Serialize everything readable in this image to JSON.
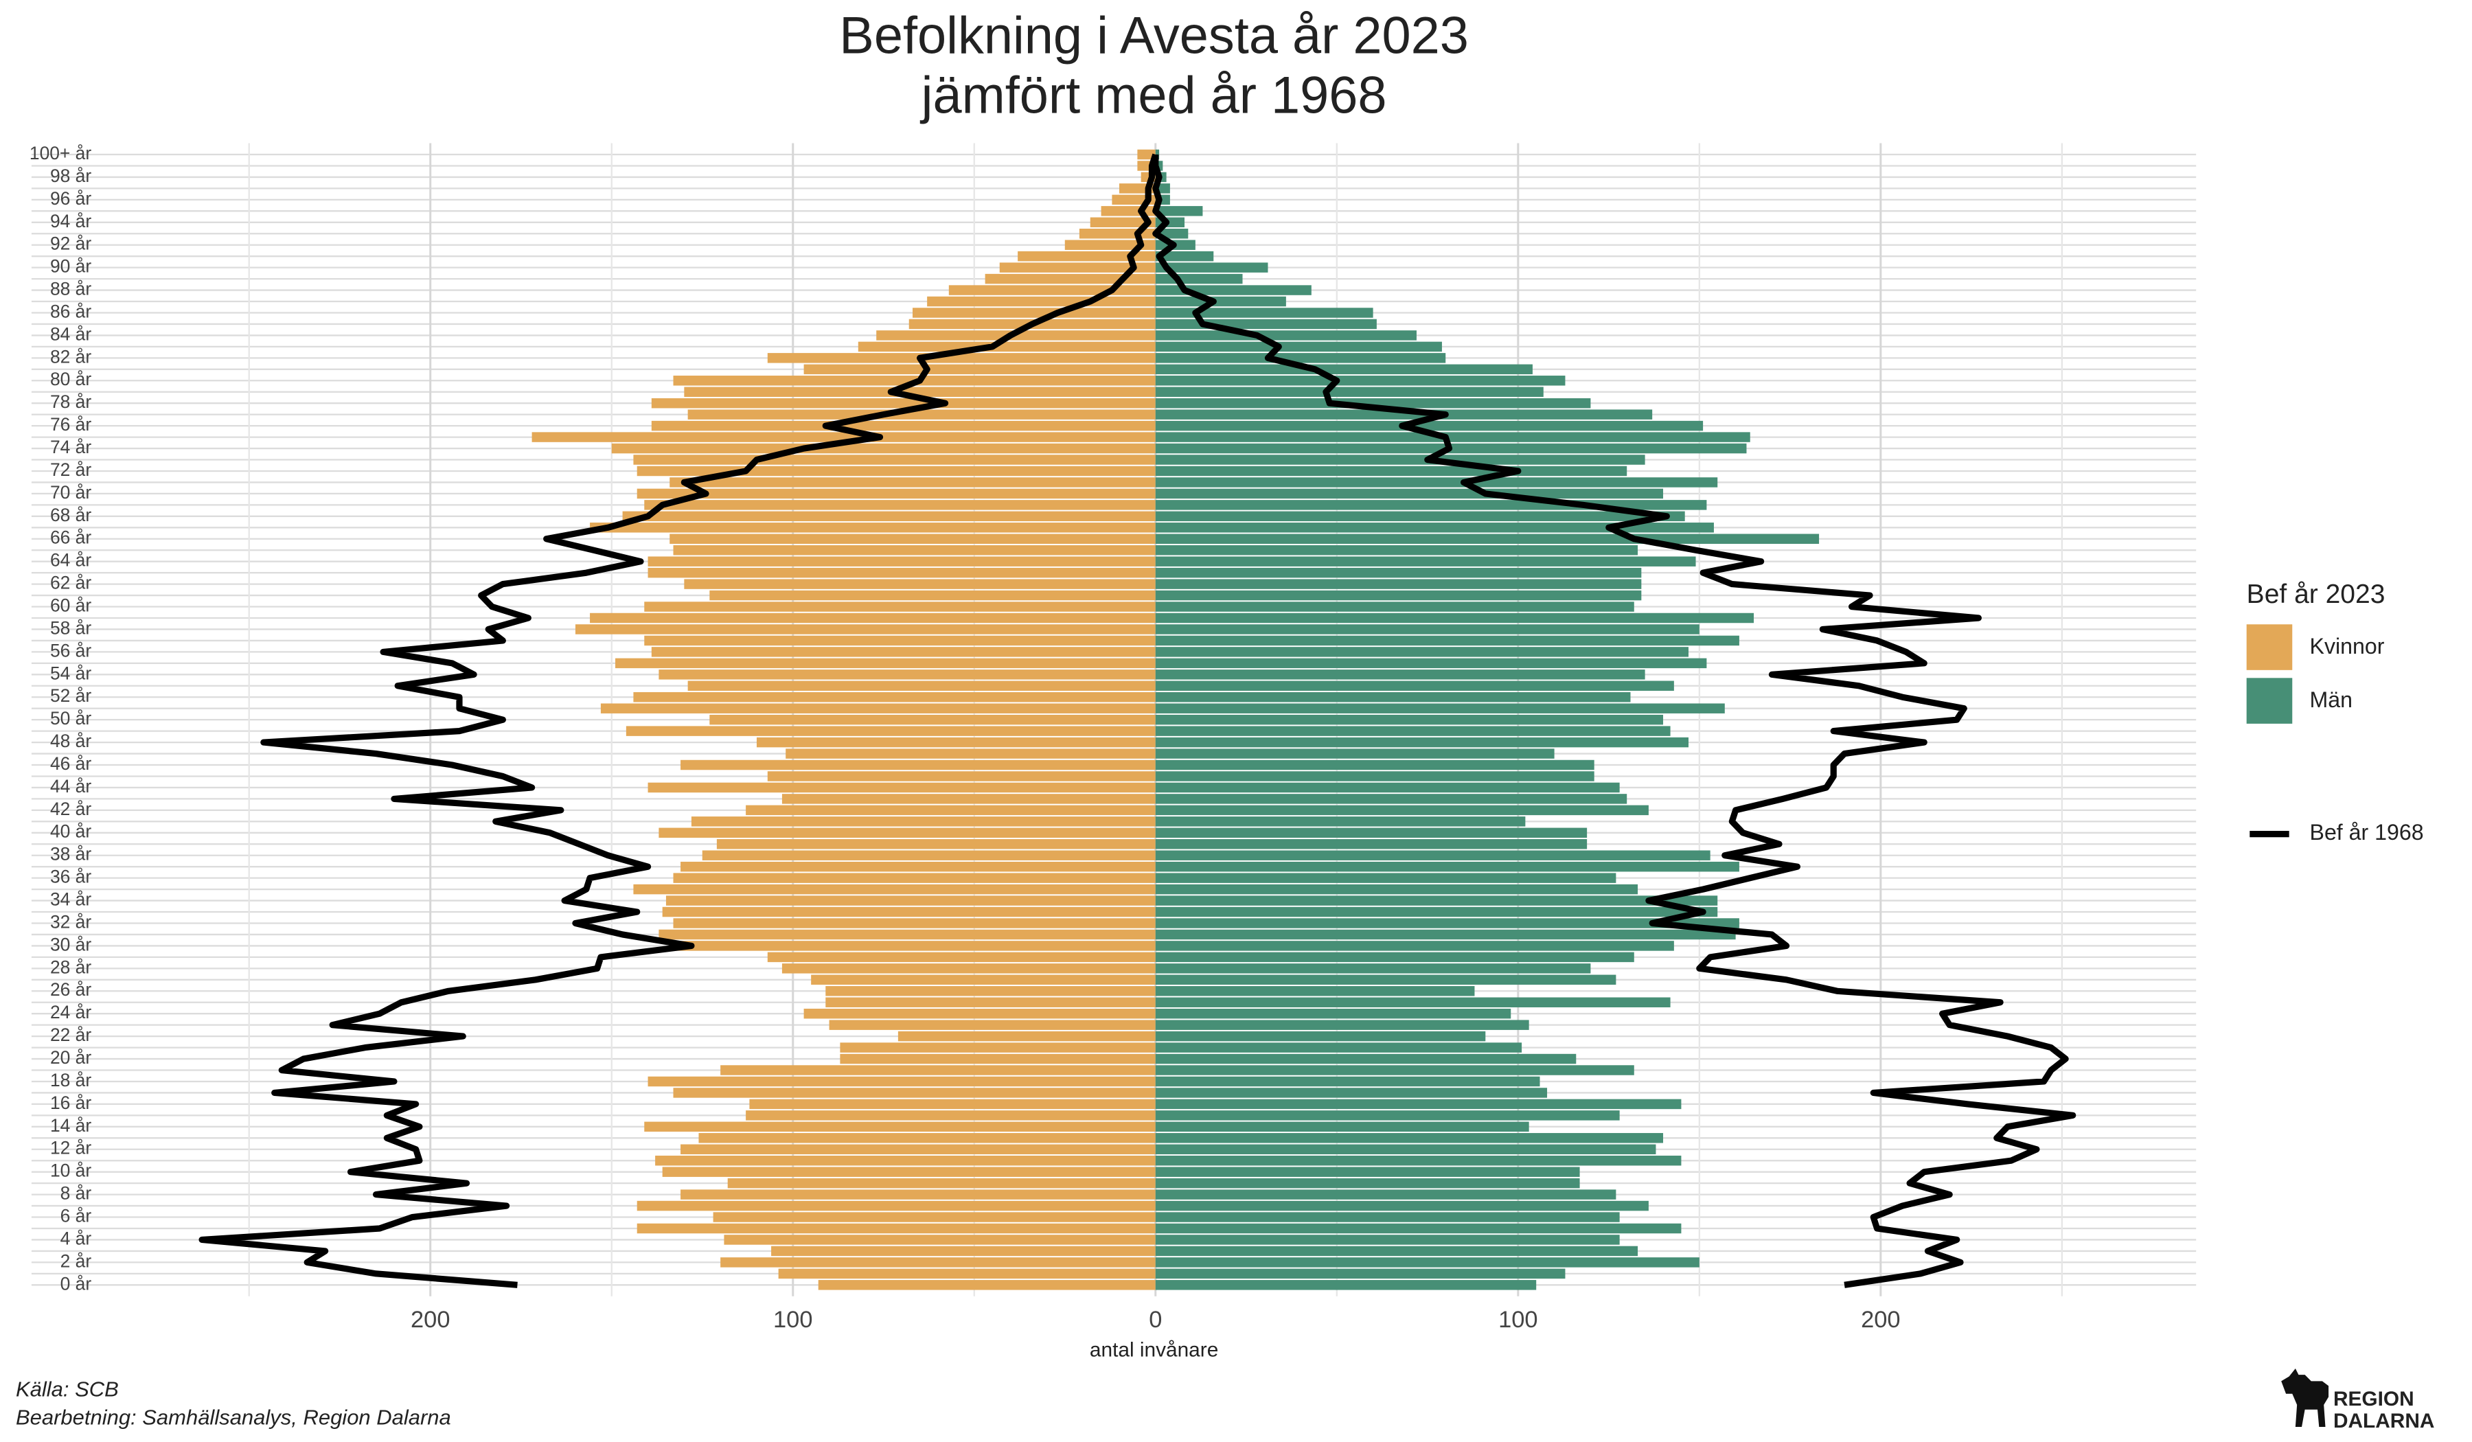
{
  "chart_data": {
    "type": "bar",
    "title": [
      "Befolkning i Avesta år 2023",
      "jämfört med år 1968"
    ],
    "x_label": "antal invånare",
    "legend_title": "Bef år 2023",
    "caption": [
      "Källa: SCB",
      "Bearbetning: Samhällsanalys, Region Dalarna"
    ],
    "logo": [
      "REGION",
      "DALARNA"
    ],
    "grid": true,
    "xlim": [
      -310,
      287
    ],
    "xticks": [
      {
        "value": -200,
        "label": "200"
      },
      {
        "value": -100,
        "label": "100"
      },
      0,
      100,
      200
    ],
    "minor_xticks": [
      -250,
      -150,
      -50,
      50,
      150,
      250
    ],
    "categories": [
      "0 år",
      null,
      "2 år",
      null,
      "4 år",
      null,
      "6 år",
      null,
      "8 år",
      null,
      "10 år",
      null,
      "12 år",
      null,
      "14 år",
      null,
      "16 år",
      null,
      "18 år",
      null,
      "20 år",
      null,
      "22 år",
      null,
      "24 år",
      null,
      "26 år",
      null,
      "28 år",
      null,
      "30 år",
      null,
      "32 år",
      null,
      "34 år",
      null,
      "36 år",
      null,
      "38 år",
      null,
      "40 år",
      null,
      "42 år",
      null,
      "44 år",
      null,
      "46 år",
      null,
      "48 år",
      null,
      "50 år",
      null,
      "52 år",
      null,
      "54 år",
      null,
      "56 år",
      null,
      "58 år",
      null,
      "60 år",
      null,
      "62 år",
      null,
      "64 år",
      null,
      "66 år",
      null,
      "68 år",
      null,
      "70 år",
      null,
      "72 år",
      null,
      "74 år",
      null,
      "76 år",
      null,
      "78 år",
      null,
      "80 år",
      null,
      "82 år",
      null,
      "84 år",
      null,
      "86 år",
      null,
      "88 år",
      null,
      "90 år",
      null,
      "92 år",
      null,
      "94 år",
      null,
      "96 år",
      null,
      "98 år",
      null,
      "100+ år"
    ],
    "series": [
      {
        "name": "Kvinnor",
        "type": "bar",
        "color": "#e3a857",
        "values": [
          -93,
          -104,
          -120,
          -106,
          -119,
          -143,
          -122,
          -143,
          -131,
          -118,
          -136,
          -138,
          -131,
          -126,
          -141,
          -113,
          -112,
          -133,
          -140,
          -120,
          -87,
          -87,
          -71,
          -90,
          -97,
          -91,
          -91,
          -95,
          -103,
          -107,
          -134,
          -137,
          -133,
          -136,
          -135,
          -144,
          -133,
          -131,
          -125,
          -121,
          -137,
          -128,
          -113,
          -103,
          -140,
          -107,
          -131,
          -102,
          -110,
          -146,
          -123,
          -153,
          -144,
          -129,
          -137,
          -149,
          -139,
          -141,
          -160,
          -156,
          -141,
          -123,
          -130,
          -140,
          -140,
          -133,
          -134,
          -156,
          -147,
          -141,
          -143,
          -134,
          -143,
          -144,
          -150,
          -172,
          -139,
          -129,
          -139,
          -130,
          -133,
          -97,
          -107,
          -82,
          -77,
          -68,
          -67,
          -63,
          -57,
          -47,
          -43,
          -38,
          -25,
          -21,
          -18,
          -15,
          -12,
          -10,
          -4,
          -5,
          -5
        ]
      },
      {
        "name": "Män",
        "type": "bar",
        "color": "#478f76",
        "values": [
          105,
          113,
          150,
          133,
          128,
          145,
          128,
          136,
          127,
          117,
          117,
          145,
          138,
          140,
          103,
          128,
          145,
          108,
          106,
          132,
          116,
          101,
          91,
          103,
          98,
          142,
          88,
          127,
          120,
          132,
          143,
          160,
          161,
          155,
          155,
          133,
          127,
          161,
          153,
          119,
          119,
          102,
          136,
          130,
          128,
          121,
          121,
          110,
          147,
          142,
          140,
          157,
          131,
          143,
          135,
          152,
          147,
          161,
          150,
          165,
          132,
          134,
          134,
          134,
          149,
          133,
          183,
          154,
          146,
          152,
          140,
          155,
          130,
          135,
          163,
          164,
          151,
          137,
          120,
          107,
          113,
          104,
          80,
          79,
          72,
          61,
          60,
          36,
          43,
          24,
          31,
          16,
          11,
          9,
          8,
          13,
          4,
          4,
          3,
          2,
          1
        ]
      },
      {
        "name": "Bef år 1968",
        "type": "line",
        "color": "#000000",
        "values": [
          -176,
          -215,
          -234,
          -229,
          -263,
          -214,
          -205,
          -179,
          -215,
          -190,
          -222,
          -203,
          -204,
          -212,
          -203,
          -212,
          -204,
          -243,
          -210,
          -241,
          -235,
          -218,
          -191,
          -227,
          -214,
          -208,
          -195,
          -171,
          -154,
          -153,
          -128,
          -147,
          -160,
          -143,
          -163,
          -157,
          -156,
          -140,
          -151,
          -159,
          -167,
          -182,
          -164,
          -210,
          -172,
          -180,
          -194,
          -215,
          -246,
          -192,
          -180,
          -192,
          -192,
          -209,
          -188,
          -194,
          -213,
          -180,
          -184,
          -173,
          -183,
          -186,
          -180,
          -157,
          -142,
          -155,
          -168,
          -151,
          -140,
          -136,
          -124,
          -130,
          -113,
          -110,
          -97,
          -76,
          -91,
          -75,
          -58,
          -73,
          -65,
          -63,
          -65,
          -45,
          -40,
          -34,
          -27,
          -18,
          -12,
          -9,
          -6,
          -7,
          -4,
          -5,
          -2,
          -4,
          -2,
          -2,
          -1,
          -1,
          0
        ],
        "values2": [
          190,
          211,
          222,
          213,
          221,
          199,
          198,
          206,
          219,
          208,
          212,
          236,
          243,
          232,
          235,
          253,
          224,
          198,
          245,
          247,
          251,
          247,
          235,
          219,
          217,
          233,
          188,
          174,
          150,
          153,
          174,
          170,
          137,
          151,
          136,
          151,
          164,
          177,
          157,
          172,
          162,
          159,
          160,
          173,
          185,
          187,
          187,
          190,
          212,
          187,
          221,
          223,
          206,
          194,
          170,
          212,
          207,
          199,
          184,
          227,
          192,
          197,
          159,
          151,
          167,
          149,
          132,
          125,
          141,
          118,
          91,
          85,
          100,
          75,
          81,
          80,
          68,
          80,
          48,
          47,
          50,
          44,
          31,
          34,
          28,
          13,
          11,
          16,
          8,
          6,
          3,
          1,
          5,
          0,
          3,
          0,
          1,
          0,
          1,
          0,
          0
        ]
      }
    ]
  }
}
